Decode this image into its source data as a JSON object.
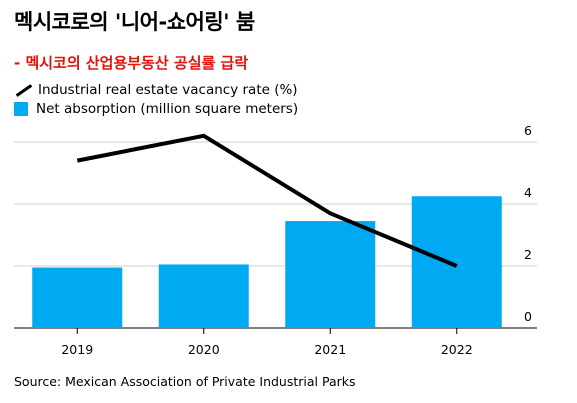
{
  "title": "멕시코로의 '니어-쇼어링' 붐",
  "subtitle": "- 멕시코의 산업용부동산 공실률 급락",
  "source": "Source: Mexican Association of Private Industrial Parks",
  "colors": {
    "bar": "#00aaf2",
    "line": "#000000",
    "subtitle": "#e3120b"
  },
  "chart_data": {
    "type": "bar",
    "categories": [
      "2019",
      "2020",
      "2021",
      "2022"
    ],
    "ylim": [
      0,
      6
    ],
    "yticks": [
      "0",
      "2",
      "4",
      "6"
    ],
    "grid": true,
    "legend_position": "top-left",
    "series": [
      {
        "name": "Net absorption (million square meters)",
        "type": "bar",
        "values": [
          1.95,
          2.05,
          3.45,
          4.25
        ]
      },
      {
        "name": "Industrial real estate vacancy rate (%)",
        "type": "line",
        "values": [
          5.4,
          6.2,
          3.7,
          2.0
        ]
      }
    ]
  }
}
